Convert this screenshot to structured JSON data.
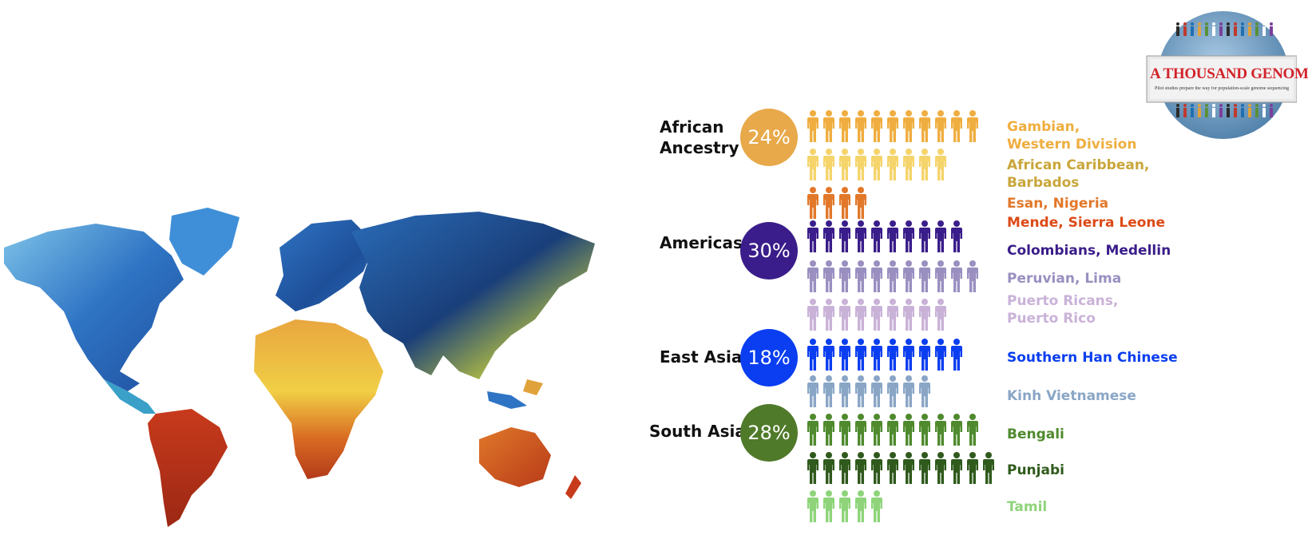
{
  "logo": {
    "text": "A THOUSAND GENOMES",
    "tagline": "Pilot studies prepare the way for population-scale genome sequencing"
  },
  "map": {
    "icon": "world-map-painting",
    "colors": [
      "#1f5fb0",
      "#3f8fd8",
      "#7ec3e8",
      "#e3c03a",
      "#e07a2a",
      "#b8341c"
    ]
  },
  "chart_data": {
    "type": "table",
    "regions": [
      {
        "name": "African\nAncestry",
        "percent": "24%",
        "color": "#e8a94a",
        "populations": [
          {
            "name": "Gambian,\nWestern Division",
            "count": 11,
            "color": "#efae3f"
          },
          {
            "name": "African Caribbean,\nBarbados",
            "count": 9,
            "color": "#f5d46b",
            "label_color": "#c9a63a"
          },
          {
            "name": "Esan, Nigeria",
            "count": 4,
            "color": "#e2782a"
          },
          {
            "name": "Mende, Sierra Leone",
            "count": 0,
            "color": "#e2782a",
            "label_color": "#dd4a16"
          }
        ]
      },
      {
        "name": "Americas",
        "percent": "30%",
        "color": "#3a1d8a",
        "populations": [
          {
            "name": "Colombians, Medellin",
            "count": 10,
            "color": "#3a1d8a"
          },
          {
            "name": "Peruvian, Lima",
            "count": 11,
            "color": "#9a8fc0"
          },
          {
            "name": "Puerto Ricans,\nPuerto Rico",
            "count": 9,
            "color": "#c9b2d8"
          }
        ]
      },
      {
        "name": "East Asia",
        "percent": "18%",
        "color": "#0a3ef0",
        "populations": [
          {
            "name": "Southern Han Chinese",
            "count": 10,
            "color": "#0a3ef0"
          },
          {
            "name": "Kinh Vietnamese",
            "count": 8,
            "color": "#8aa6c6"
          }
        ]
      },
      {
        "name": "South Asia",
        "percent": "28%",
        "color": "#4f7a2a",
        "populations": [
          {
            "name": "Bengali",
            "count": 11,
            "color": "#4f8a2e"
          },
          {
            "name": "Punjabi",
            "count": 12,
            "color": "#2f5a1c"
          },
          {
            "name": "Tamil",
            "count": 5,
            "color": "#8fd47a"
          }
        ]
      }
    ]
  }
}
